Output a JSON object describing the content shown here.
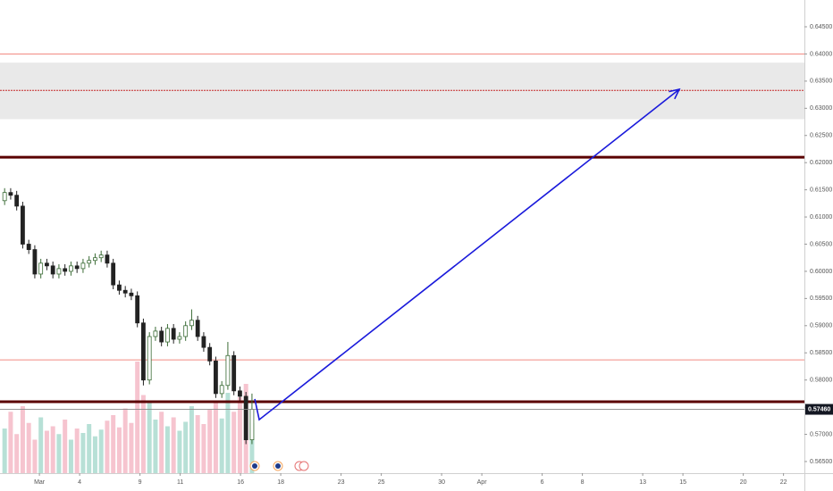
{
  "chart_data": {
    "type": "candlestick",
    "xlim": [
      -1.96,
      38.04
    ],
    "ylim": [
      0.56286,
      0.64993
    ],
    "xticks": [
      {
        "value": 0,
        "label": "Mar"
      },
      {
        "value": 2,
        "label": "4"
      },
      {
        "value": 5,
        "label": "9"
      },
      {
        "value": 7,
        "label": "11"
      },
      {
        "value": 10,
        "label": "16"
      },
      {
        "value": 12,
        "label": "18"
      },
      {
        "value": 15,
        "label": "23"
      },
      {
        "value": 17,
        "label": "25"
      },
      {
        "value": 20,
        "label": "30"
      },
      {
        "value": 22,
        "label": "Apr"
      },
      {
        "value": 25,
        "label": "6"
      },
      {
        "value": 27,
        "label": "8"
      },
      {
        "value": 30,
        "label": "13"
      },
      {
        "value": 32,
        "label": "15"
      },
      {
        "value": 35,
        "label": "20"
      },
      {
        "value": 37,
        "label": "22"
      }
    ],
    "yticks": [
      {
        "value": 0.645,
        "label": "0.64500"
      },
      {
        "value": 0.64,
        "label": "0.64000"
      },
      {
        "value": 0.635,
        "label": "0.63500"
      },
      {
        "value": 0.63,
        "label": "0.63000"
      },
      {
        "value": 0.625,
        "label": "0.62500"
      },
      {
        "value": 0.62,
        "label": "0.62000"
      },
      {
        "value": 0.615,
        "label": "0.61500"
      },
      {
        "value": 0.61,
        "label": "0.61000"
      },
      {
        "value": 0.605,
        "label": "0.60500"
      },
      {
        "value": 0.6,
        "label": "0.60000"
      },
      {
        "value": 0.595,
        "label": "0.59500"
      },
      {
        "value": 0.59,
        "label": "0.59000"
      },
      {
        "value": 0.585,
        "label": "0.58500"
      },
      {
        "value": 0.58,
        "label": "0.58000"
      },
      {
        "value": 0.575,
        "label": "0.57500"
      },
      {
        "value": 0.57,
        "label": "0.57000"
      },
      {
        "value": 0.565,
        "label": "0.56500"
      }
    ],
    "up_color": "#3a6b35",
    "down_color": "#222222",
    "volume_up_color": "#b7e0d6",
    "volume_down_color": "#f6c4cf",
    "x": [
      -1.73,
      -1.43,
      -1.13,
      -0.83,
      -0.53,
      -0.23,
      0.07,
      0.37,
      0.67,
      0.97,
      1.27,
      1.57,
      1.87,
      2.17,
      2.47,
      2.77,
      3.07,
      3.37,
      3.67,
      3.97,
      4.27,
      4.57,
      4.87,
      5.17,
      5.47,
      5.77,
      6.07,
      6.37,
      6.67,
      6.97,
      7.27,
      7.57,
      7.87,
      8.17,
      8.47,
      8.77,
      9.07,
      9.37,
      9.67,
      9.97,
      10.27,
      10.57
    ],
    "open": [
      0.613,
      0.6145,
      0.614,
      0.612,
      0.605,
      0.604,
      0.5995,
      0.6015,
      0.601,
      0.5995,
      0.6005,
      0.6,
      0.601,
      0.6005,
      0.6015,
      0.602,
      0.6025,
      0.603,
      0.6015,
      0.5975,
      0.5965,
      0.596,
      0.5955,
      0.5905,
      0.58,
      0.588,
      0.589,
      0.587,
      0.5895,
      0.5875,
      0.588,
      0.59,
      0.591,
      0.588,
      0.586,
      0.5835,
      0.5775,
      0.579,
      0.5845,
      0.578,
      0.577,
      0.569
    ],
    "high": [
      0.6153,
      0.6153,
      0.6148,
      0.6128,
      0.6058,
      0.6048,
      0.6023,
      0.6023,
      0.6018,
      0.6013,
      0.6013,
      0.6018,
      0.6018,
      0.6023,
      0.6028,
      0.6033,
      0.6038,
      0.6038,
      0.6023,
      0.5983,
      0.5973,
      0.5968,
      0.5963,
      0.5913,
      0.5888,
      0.5898,
      0.5898,
      0.5903,
      0.5903,
      0.5888,
      0.5908,
      0.593,
      0.5918,
      0.5888,
      0.5868,
      0.5843,
      0.5798,
      0.587,
      0.5853,
      0.5788,
      0.5778,
      0.5775
    ],
    "low": [
      0.6122,
      0.6132,
      0.6112,
      0.6042,
      0.6032,
      0.5987,
      0.5987,
      0.6002,
      0.5987,
      0.5987,
      0.5992,
      0.5992,
      0.5997,
      0.5997,
      0.6007,
      0.6012,
      0.6017,
      0.6007,
      0.5967,
      0.5957,
      0.5952,
      0.5947,
      0.5897,
      0.579,
      0.5792,
      0.5872,
      0.5862,
      0.5862,
      0.5867,
      0.5867,
      0.5872,
      0.5892,
      0.5872,
      0.5852,
      0.5827,
      0.5767,
      0.5767,
      0.5782,
      0.5772,
      0.5762,
      0.5682,
      0.5682
    ],
    "close": [
      0.6145,
      0.614,
      0.612,
      0.605,
      0.604,
      0.5995,
      0.6015,
      0.601,
      0.5995,
      0.6005,
      0.6,
      0.601,
      0.6005,
      0.6015,
      0.602,
      0.6025,
      0.603,
      0.6015,
      0.5975,
      0.5965,
      0.596,
      0.5955,
      0.5905,
      0.58,
      0.588,
      0.589,
      0.587,
      0.5895,
      0.5875,
      0.588,
      0.59,
      0.591,
      0.588,
      0.586,
      0.5835,
      0.5775,
      0.579,
      0.5845,
      0.578,
      0.577,
      0.569,
      0.5746
    ],
    "volume": [
      40,
      55,
      35,
      60,
      45,
      30,
      50,
      38,
      42,
      35,
      48,
      30,
      40,
      36,
      44,
      33,
      39,
      47,
      52,
      41,
      58,
      45,
      100,
      70,
      65,
      48,
      55,
      42,
      50,
      38,
      46,
      60,
      52,
      44,
      57,
      63,
      49,
      72,
      55,
      68,
      80,
      45
    ],
    "zone": {
      "from": 0.628,
      "to": 0.6384,
      "color": "#e3e3e3"
    },
    "levels": [
      {
        "value": 0.64,
        "color": "#f28b82",
        "style": "thin"
      },
      {
        "value": 0.6333,
        "color": "#c62828",
        "style": "dotted"
      },
      {
        "value": 0.621,
        "color": "#5a0000",
        "style": "thick"
      },
      {
        "value": 0.5837,
        "color": "#f28b82",
        "style": "thin"
      },
      {
        "value": 0.576,
        "color": "#5a0000",
        "style": "thick"
      }
    ],
    "arrow": {
      "x": [
        10.71,
        10.93,
        31.82
      ],
      "y": [
        0.5765,
        0.5727,
        0.6335
      ],
      "color": "#1a1adb"
    },
    "last_price": {
      "value": 0.5746,
      "label": "0.57460"
    },
    "last_price_color": "#131722"
  }
}
